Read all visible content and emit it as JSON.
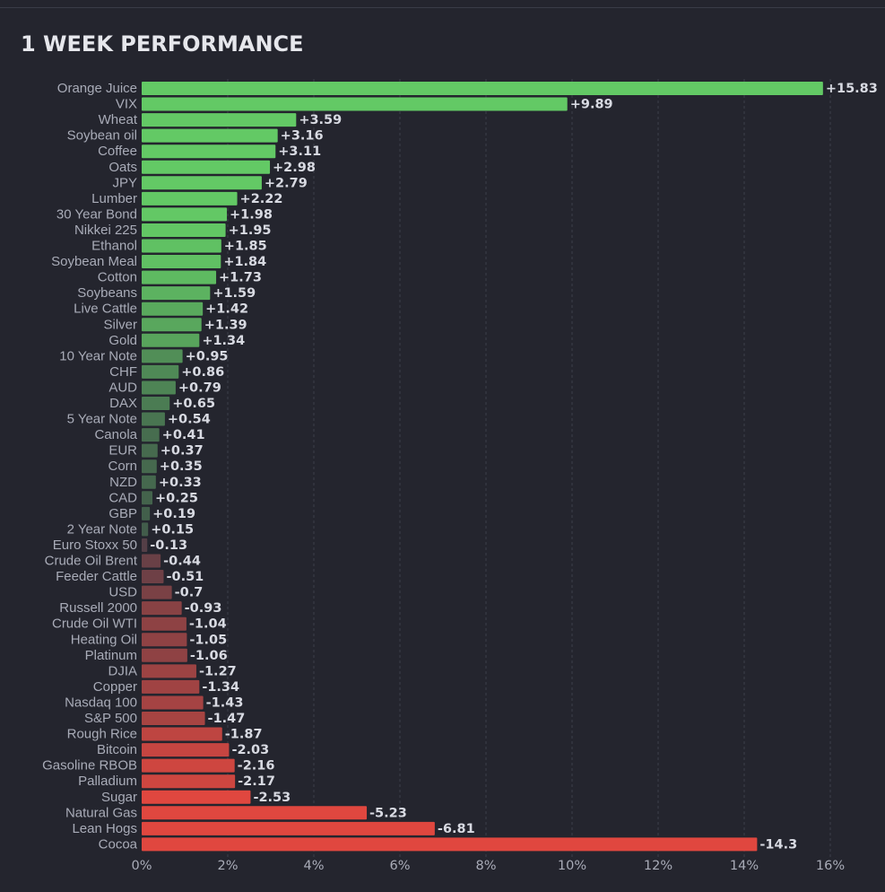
{
  "title": "1 WEEK PERFORMANCE",
  "chart_data": {
    "type": "bar",
    "orientation": "horizontal",
    "categories": [
      "Orange Juice",
      "VIX",
      "Wheat",
      "Soybean oil",
      "Coffee",
      "Oats",
      "JPY",
      "Lumber",
      "30 Year Bond",
      "Nikkei 225",
      "Ethanol",
      "Soybean Meal",
      "Cotton",
      "Soybeans",
      "Live Cattle",
      "Silver",
      "Gold",
      "10 Year Note",
      "CHF",
      "AUD",
      "DAX",
      "5 Year Note",
      "Canola",
      "EUR",
      "Corn",
      "NZD",
      "CAD",
      "GBP",
      "2 Year Note",
      "Euro Stoxx 50",
      "Crude Oil Brent",
      "Feeder Cattle",
      "USD",
      "Russell 2000",
      "Crude Oil WTI",
      "Heating Oil",
      "Platinum",
      "DJIA",
      "Copper",
      "Nasdaq 100",
      "S&P 500",
      "Rough Rice",
      "Bitcoin",
      "Gasoline RBOB",
      "Palladium",
      "Sugar",
      "Natural Gas",
      "Lean Hogs",
      "Cocoa"
    ],
    "values": [
      15.83,
      9.89,
      3.59,
      3.16,
      3.11,
      2.98,
      2.79,
      2.22,
      1.98,
      1.95,
      1.85,
      1.84,
      1.73,
      1.59,
      1.42,
      1.39,
      1.34,
      0.95,
      0.86,
      0.79,
      0.65,
      0.54,
      0.41,
      0.37,
      0.35,
      0.33,
      0.25,
      0.19,
      0.15,
      -0.13,
      -0.44,
      -0.51,
      -0.7,
      -0.93,
      -1.04,
      -1.05,
      -1.06,
      -1.27,
      -1.34,
      -1.43,
      -1.47,
      -1.87,
      -2.03,
      -2.16,
      -2.17,
      -2.53,
      -5.23,
      -6.81,
      -14.3
    ],
    "value_labels": [
      "+15.83",
      "+9.89",
      "+3.59",
      "+3.16",
      "+3.11",
      "+2.98",
      "+2.79",
      "+2.22",
      "+1.98",
      "+1.95",
      "+1.85",
      "+1.84",
      "+1.73",
      "+1.59",
      "+1.42",
      "+1.39",
      "+1.34",
      "+0.95",
      "+0.86",
      "+0.79",
      "+0.65",
      "+0.54",
      "+0.41",
      "+0.37",
      "+0.35",
      "+0.33",
      "+0.25",
      "+0.19",
      "+0.15",
      "-0.13",
      "-0.44",
      "-0.51",
      "-0.7",
      "-0.93",
      "-1.04",
      "-1.05",
      "-1.06",
      "-1.27",
      "-1.34",
      "-1.43",
      "-1.47",
      "-1.87",
      "-2.03",
      "-2.16",
      "-2.17",
      "-2.53",
      "-5.23",
      "-6.81",
      "-14.3"
    ],
    "xticks": [
      "0%",
      "2%",
      "4%",
      "6%",
      "8%",
      "10%",
      "12%",
      "14%",
      "16%"
    ],
    "xlim": [
      0,
      16
    ],
    "bar_length": "absolute value",
    "grid": "vertical dashed",
    "colors": {
      "positive_strong": "#63c965",
      "positive_weak": "#3e5048",
      "negative_weak": "#4a3e48",
      "negative_strong": "#e0473f",
      "background": "#24252e"
    }
  }
}
